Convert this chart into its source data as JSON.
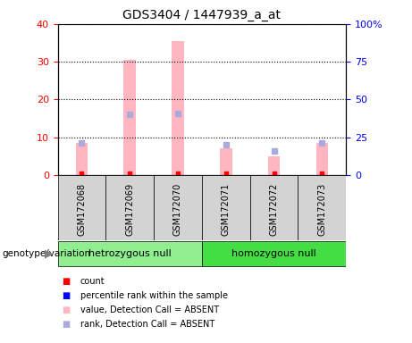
{
  "title": "GDS3404 / 1447939_a_at",
  "samples": [
    "GSM172068",
    "GSM172069",
    "GSM172070",
    "GSM172071",
    "GSM172072",
    "GSM172073"
  ],
  "pink_bars": [
    8.5,
    30.5,
    35.5,
    7.0,
    5.0,
    8.5
  ],
  "blue_marks_pct": [
    21.0,
    40.0,
    41.0,
    20.0,
    16.0,
    21.0
  ],
  "left_ylim": [
    0,
    40
  ],
  "right_ylim": [
    0,
    100
  ],
  "left_yticks": [
    0,
    10,
    20,
    30,
    40
  ],
  "right_yticks": [
    0,
    25,
    50,
    75,
    100
  ],
  "right_yticklabels": [
    "0",
    "25",
    "50",
    "75",
    "100%"
  ],
  "groups": [
    {
      "label": "hetrozygous null",
      "start": 0,
      "end": 2,
      "color": "#90EE90"
    },
    {
      "label": "homozygous null",
      "start": 3,
      "end": 5,
      "color": "#44DD44"
    }
  ],
  "sample_bg_color": "#d3d3d3",
  "pink_color": "#FFB6C1",
  "blue_color": "#AAAADD",
  "left_axis_color": "#FF0000",
  "right_axis_color": "#0000FF",
  "bar_width": 0.25,
  "legend_colors": [
    "#FF0000",
    "#0000FF",
    "#FFB6C1",
    "#AAAADD"
  ],
  "legend_labels": [
    "count",
    "percentile rank within the sample",
    "value, Detection Call = ABSENT",
    "rank, Detection Call = ABSENT"
  ],
  "genotype_label": "genotype/variation"
}
